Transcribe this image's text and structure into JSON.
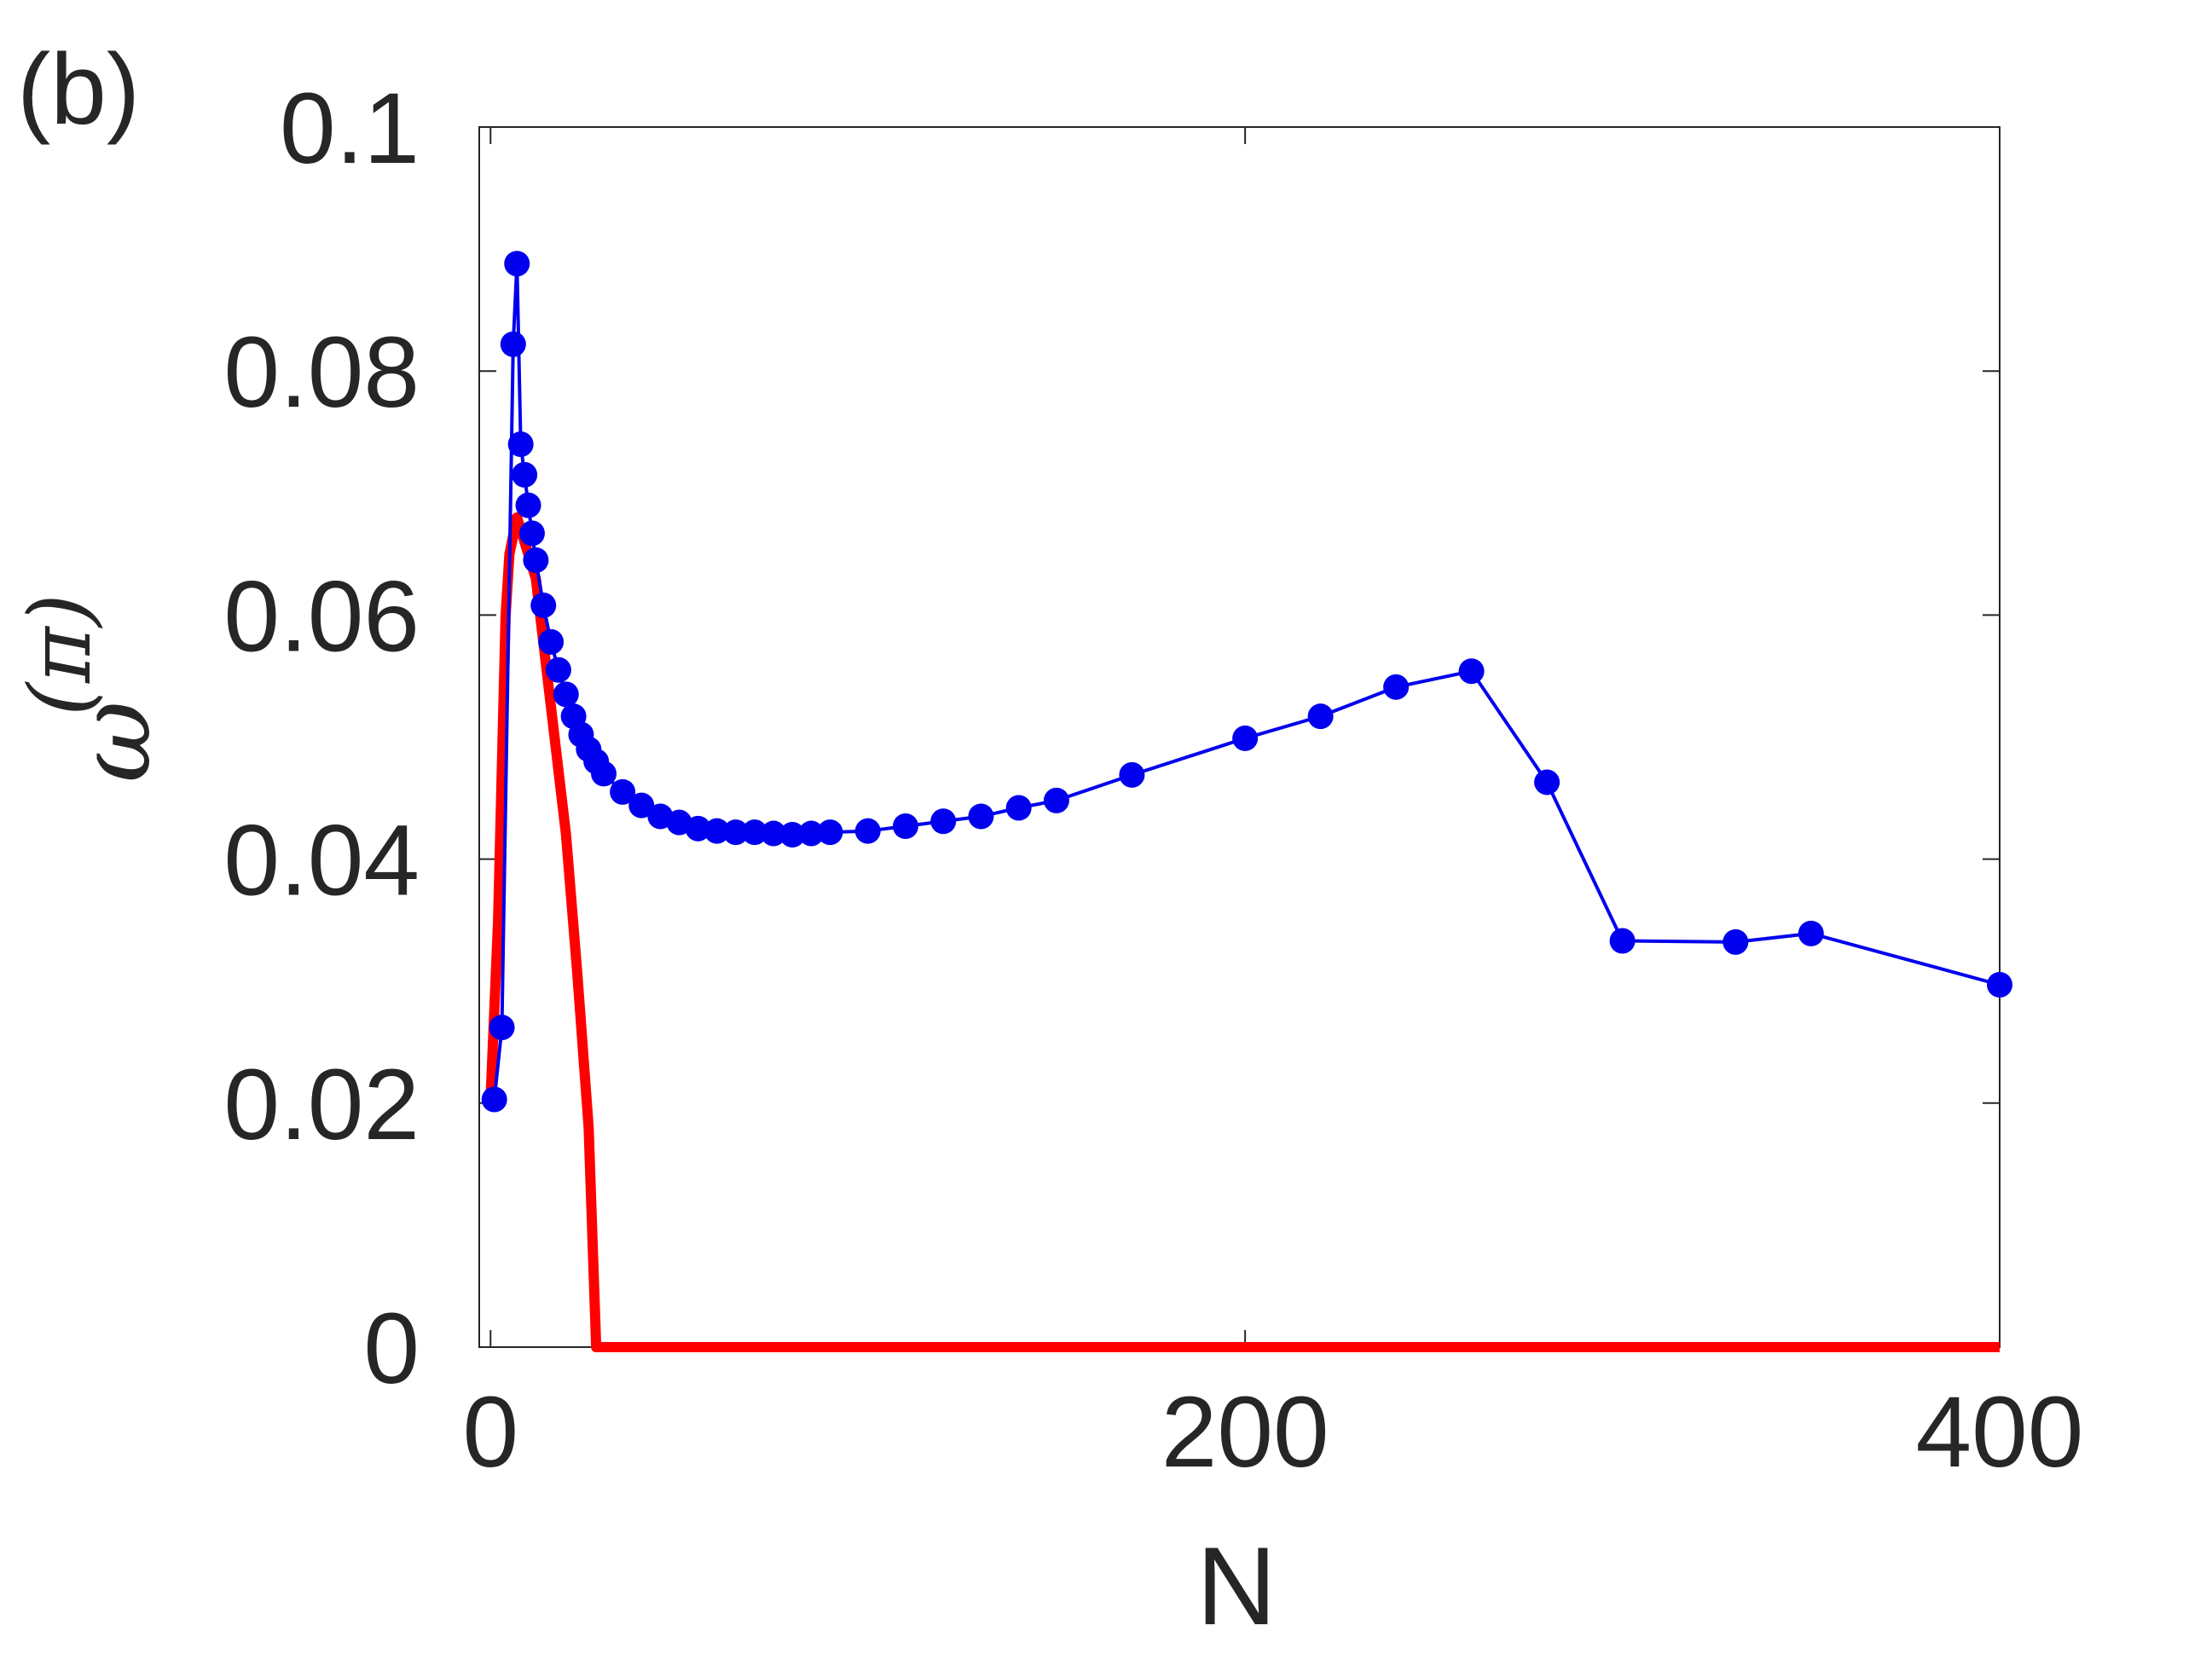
{
  "chart_data": {
    "type": "line",
    "panel_label": "(b)",
    "xlabel": "N",
    "ylabel": "ω",
    "ylabel_sup": "(π)",
    "xlim": [
      -3,
      400
    ],
    "ylim": [
      0,
      0.1
    ],
    "xticks": [
      0,
      200,
      400
    ],
    "yticks": [
      0,
      0.02,
      0.04,
      0.06,
      0.08,
      0.1
    ],
    "series": [
      {
        "color": "#ff0000",
        "markers": false,
        "x": [
          0,
          2,
          4,
          5,
          7,
          12,
          16,
          20,
          23,
          26,
          28,
          400
        ],
        "values": [
          0.0203,
          0.035,
          0.06,
          0.065,
          0.068,
          0.063,
          0.0525,
          0.042,
          0.0306,
          0.018,
          0,
          0
        ]
      },
      {
        "color": "#0000ee",
        "markers": true,
        "x": [
          1,
          3,
          6,
          7,
          8,
          9,
          10,
          11,
          12,
          14,
          16,
          18,
          20,
          22,
          24,
          26,
          28,
          30,
          35,
          40,
          45,
          50,
          55,
          60,
          65,
          70,
          75,
          80,
          85,
          90,
          100,
          110,
          120,
          130,
          140,
          150,
          170,
          200,
          220,
          240,
          260,
          280,
          300,
          330,
          350,
          400
        ],
        "values": [
          0.0203,
          0.0262,
          0.0822,
          0.0888,
          0.074,
          0.0715,
          0.069,
          0.0667,
          0.0645,
          0.0608,
          0.0578,
          0.0555,
          0.0535,
          0.0517,
          0.0502,
          0.049,
          0.048,
          0.047,
          0.0455,
          0.0444,
          0.0435,
          0.043,
          0.0425,
          0.0423,
          0.0422,
          0.0422,
          0.0421,
          0.042,
          0.0421,
          0.0422,
          0.0423,
          0.0427,
          0.0431,
          0.0435,
          0.0442,
          0.0448,
          0.0469,
          0.0499,
          0.0517,
          0.0541,
          0.0554,
          0.0463,
          0.0333,
          0.0332,
          0.0339,
          0.0297
        ]
      }
    ]
  }
}
